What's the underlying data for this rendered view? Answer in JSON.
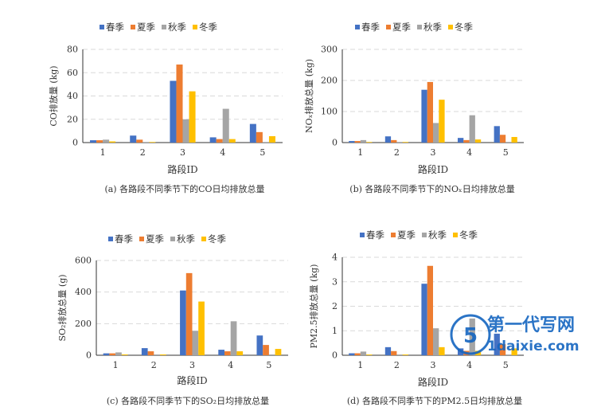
{
  "legend": [
    "春季",
    "夏季",
    "秋季",
    "冬季"
  ],
  "colors": {
    "spring": "#4472C4",
    "summer": "#ED7D31",
    "autumn": "#A5A5A5",
    "winter": "#FFC000",
    "grid": "#D9D9D9",
    "axis": "#333333"
  },
  "watermark": {
    "title": "第一代写网",
    "site": "1daixie.com",
    "color": "#1565C0"
  },
  "chart_data": [
    {
      "type": "bar",
      "caption": "(a) 各路段不同季节下的CO日均排放总量",
      "xlabel": "路段ID",
      "ylabel": "CO排放量 (kg)",
      "categories": [
        "1",
        "2",
        "3",
        "4",
        "5"
      ],
      "ylim": [
        0,
        80
      ],
      "yticks": [
        "0",
        "20",
        "40",
        "60",
        "80"
      ],
      "grid": true,
      "legend_position": "top",
      "series": [
        {
          "name": "春季",
          "values": [
            2,
            6,
            53,
            4.5,
            16
          ]
        },
        {
          "name": "夏季",
          "values": [
            2,
            2.5,
            67,
            3,
            9
          ]
        },
        {
          "name": "秋季",
          "values": [
            2.5,
            0.5,
            20,
            29,
            0.5
          ]
        },
        {
          "name": "冬季",
          "values": [
            1,
            0.5,
            44,
            3,
            5.5
          ]
        }
      ]
    },
    {
      "type": "bar",
      "caption": "(b) 各路段不同季节下的NOₓ日均排放总量",
      "xlabel": "路段ID",
      "ylabel": "NOₓ排放总量 (kg)",
      "categories": [
        "1",
        "2",
        "3",
        "4",
        "5"
      ],
      "ylim": [
        0,
        300
      ],
      "yticks": [
        "0",
        "100",
        "200",
        "300"
      ],
      "grid": true,
      "legend_position": "top",
      "series": [
        {
          "name": "春季",
          "values": [
            5,
            20,
            170,
            15,
            53
          ]
        },
        {
          "name": "夏季",
          "values": [
            5,
            8,
            195,
            8,
            25
          ]
        },
        {
          "name": "秋季",
          "values": [
            8,
            2,
            63,
            88,
            2
          ]
        },
        {
          "name": "冬季",
          "values": [
            2,
            2,
            138,
            10,
            18
          ]
        }
      ]
    },
    {
      "type": "bar",
      "caption": "(c) 各路段不同季节下的SO₂日均排放总量",
      "xlabel": "路段ID",
      "ylabel": "SO₂排放总量 (g)",
      "categories": [
        "1",
        "2",
        "3",
        "4",
        "5"
      ],
      "ylim": [
        0,
        600
      ],
      "yticks": [
        "0",
        "200",
        "400",
        "600"
      ],
      "grid": true,
      "legend_position": "top",
      "series": [
        {
          "name": "春季",
          "values": [
            12,
            45,
            410,
            35,
            125
          ]
        },
        {
          "name": "夏季",
          "values": [
            12,
            25,
            520,
            25,
            65
          ]
        },
        {
          "name": "秋季",
          "values": [
            18,
            5,
            155,
            215,
            5
          ]
        },
        {
          "name": "冬季",
          "values": [
            5,
            5,
            340,
            25,
            40
          ]
        }
      ]
    },
    {
      "type": "bar",
      "caption": "(d) 各路段不同季节下的PM2.5日均排放总量",
      "xlabel": "路段ID",
      "ylabel": "PM2.5排放总量 (kg)",
      "categories": [
        "1",
        "2",
        "3",
        "4",
        "5"
      ],
      "ylim": [
        0,
        4
      ],
      "yticks": [
        "0",
        "1",
        "2",
        "3",
        "4"
      ],
      "grid": true,
      "legend_position": "top",
      "series": [
        {
          "name": "春季",
          "values": [
            0.08,
            0.33,
            2.92,
            0.28,
            0.88
          ]
        },
        {
          "name": "夏季",
          "values": [
            0.08,
            0.17,
            3.65,
            0.18,
            0.45
          ]
        },
        {
          "name": "秋季",
          "values": [
            0.15,
            0.03,
            1.1,
            1.5,
            0.03
          ]
        },
        {
          "name": "冬季",
          "values": [
            0.03,
            0.03,
            0.33,
            0.18,
            0.28
          ]
        }
      ]
    }
  ]
}
